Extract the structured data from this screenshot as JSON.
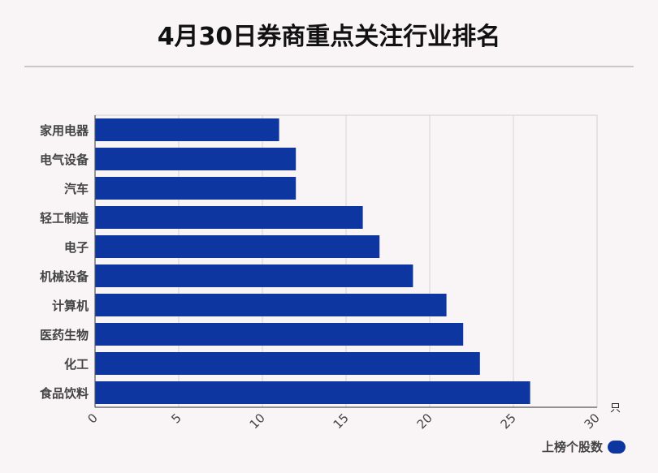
{
  "title": "4月30日券商重点关注行业排名",
  "chart_data": {
    "type": "bar",
    "orientation": "horizontal",
    "categories": [
      "家用电器",
      "电气设备",
      "汽车",
      "轻工制造",
      "电子",
      "机械设备",
      "计算机",
      "医药生物",
      "化工",
      "食品饮料"
    ],
    "series": [
      {
        "name": "上榜个股数",
        "values": [
          11,
          12,
          12,
          16,
          17,
          19,
          21,
          22,
          23,
          26
        ]
      }
    ],
    "xlim": [
      0,
      30
    ],
    "xticks": [
      0,
      5,
      10,
      15,
      20,
      25,
      30
    ],
    "xunit": "只",
    "grid": true,
    "legend_position": "bottom-right",
    "bar_color": "#0d36a0"
  }
}
